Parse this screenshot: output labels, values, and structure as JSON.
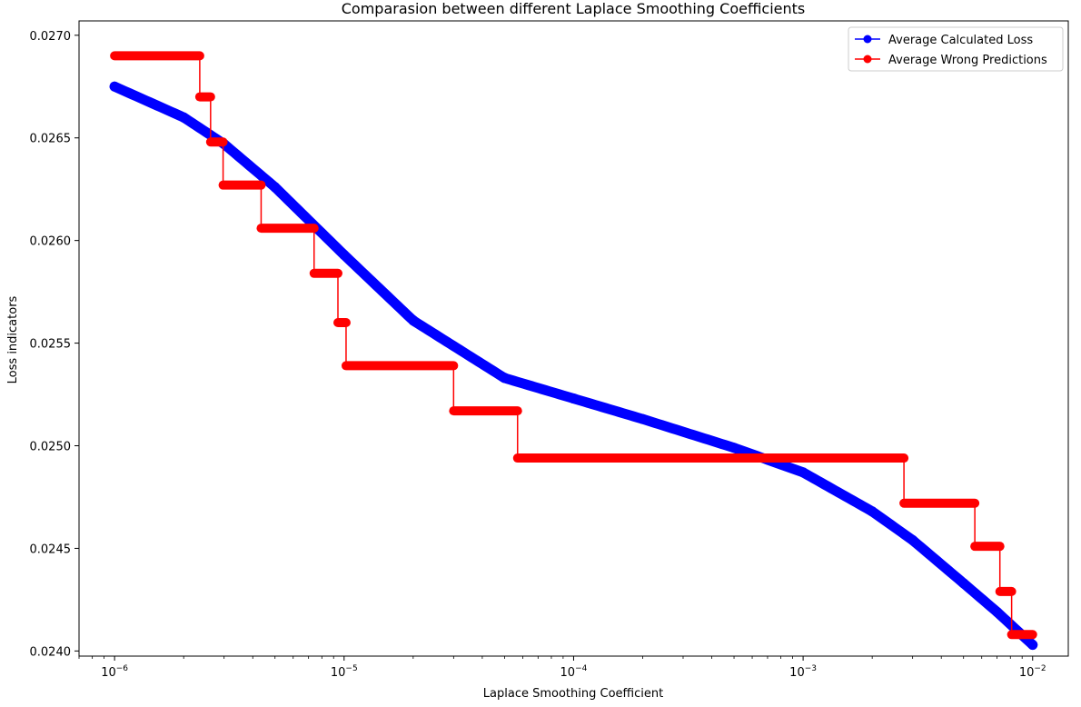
{
  "chart_data": {
    "type": "line",
    "title": "Comparasion between different Laplace Smoothing Coefficients",
    "xlabel": "Laplace Smoothing Coefficient",
    "ylabel": "Loss indicators",
    "xscale": "log",
    "xlim": [
      7e-07,
      0.0143
    ],
    "ylim": [
      0.023975,
      0.02707
    ],
    "grid": false,
    "legend_position": "top-right",
    "x_ticks": [
      {
        "value": 1e-06,
        "base": "10",
        "exp": "−6"
      },
      {
        "value": 1e-05,
        "base": "10",
        "exp": "−5"
      },
      {
        "value": 0.0001,
        "base": "10",
        "exp": "−4"
      },
      {
        "value": 0.001,
        "base": "10",
        "exp": "−3"
      },
      {
        "value": 0.01,
        "base": "10",
        "exp": "−2"
      }
    ],
    "y_ticks": [
      {
        "value": 0.024,
        "label": "0.0240"
      },
      {
        "value": 0.0245,
        "label": "0.0245"
      },
      {
        "value": 0.025,
        "label": "0.0250"
      },
      {
        "value": 0.0255,
        "label": "0.0255"
      },
      {
        "value": 0.026,
        "label": "0.0260"
      },
      {
        "value": 0.0265,
        "label": "0.0265"
      },
      {
        "value": 0.027,
        "label": "0.0270"
      }
    ],
    "series": [
      {
        "name": "Average Calculated Loss",
        "color": "#0000ff",
        "marker": "circle",
        "style": "smooth",
        "x": [
          1e-06,
          2e-06,
          3e-06,
          5e-06,
          1e-05,
          2e-05,
          5e-05,
          0.0001,
          0.0002,
          0.0005,
          0.001,
          0.002,
          0.003,
          0.005,
          0.007,
          0.01
        ],
        "values": [
          0.02675,
          0.0266,
          0.02647,
          0.02626,
          0.02593,
          0.02561,
          0.02533,
          0.02523,
          0.02513,
          0.02499,
          0.02487,
          0.02468,
          0.02454,
          0.02433,
          0.02419,
          0.02403
        ]
      },
      {
        "name": "Average Wrong Predictions",
        "color": "#ff0000",
        "marker": "circle",
        "style": "step",
        "steps": [
          {
            "x_start": 1e-06,
            "x_end": 2.35e-06,
            "value": 0.0269
          },
          {
            "x_start": 2.35e-06,
            "x_end": 2.62e-06,
            "value": 0.0267
          },
          {
            "x_start": 2.62e-06,
            "x_end": 2.97e-06,
            "value": 0.02648
          },
          {
            "x_start": 2.97e-06,
            "x_end": 4.35e-06,
            "value": 0.02627
          },
          {
            "x_start": 4.35e-06,
            "x_end": 7.4e-06,
            "value": 0.02606
          },
          {
            "x_start": 7.4e-06,
            "x_end": 9.4e-06,
            "value": 0.02584
          },
          {
            "x_start": 9.4e-06,
            "x_end": 1.02e-05,
            "value": 0.0256
          },
          {
            "x_start": 1.02e-05,
            "x_end": 3e-05,
            "value": 0.02539
          },
          {
            "x_start": 3e-05,
            "x_end": 5.7e-05,
            "value": 0.02517
          },
          {
            "x_start": 5.7e-05,
            "x_end": 0.00275,
            "value": 0.02494
          },
          {
            "x_start": 0.00275,
            "x_end": 0.0056,
            "value": 0.02472
          },
          {
            "x_start": 0.0056,
            "x_end": 0.0072,
            "value": 0.02451
          },
          {
            "x_start": 0.0072,
            "x_end": 0.0081,
            "value": 0.02429
          },
          {
            "x_start": 0.0081,
            "x_end": 0.01,
            "value": 0.02408
          }
        ]
      }
    ]
  }
}
